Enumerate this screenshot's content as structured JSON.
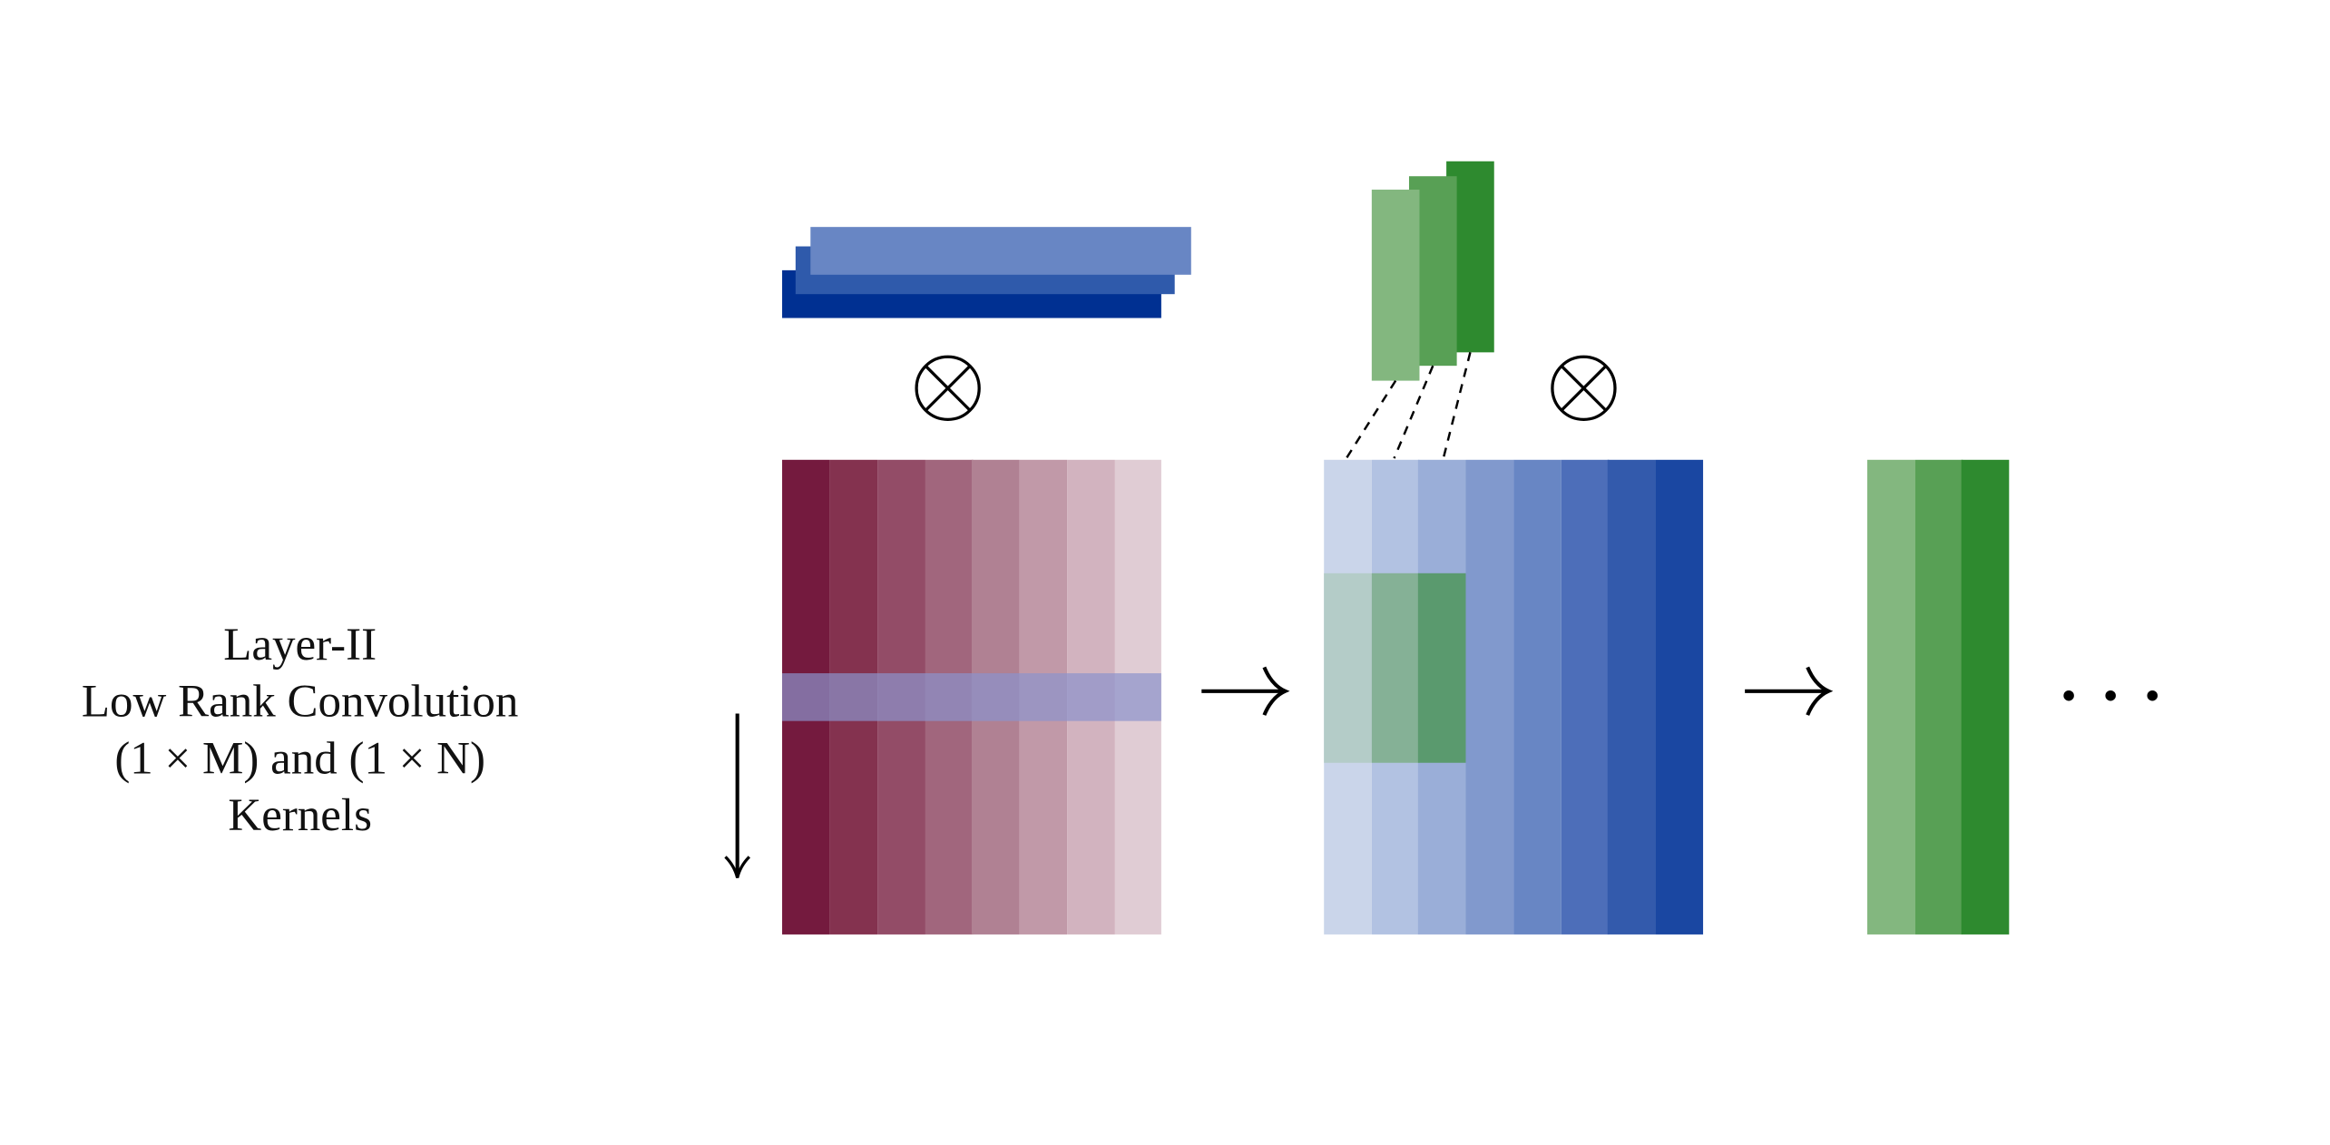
{
  "label": {
    "lines": [
      "Layer-II",
      "Low Rank Convolution",
      "(1 × M) and (1 × N)",
      "Kernels"
    ]
  }
}
